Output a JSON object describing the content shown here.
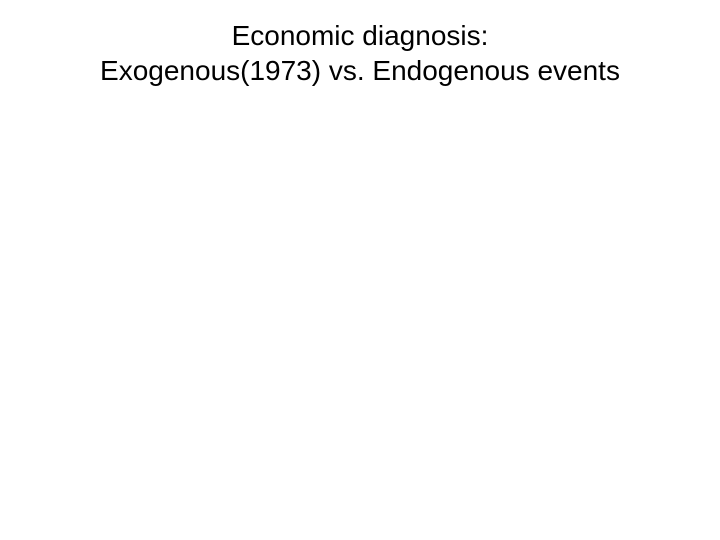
{
  "slide": {
    "title_line1": "Economic diagnosis:",
    "title_line2": "Exogenous(1973) vs. Endogenous events",
    "title_fontsize": 28,
    "title_color": "#000000",
    "background_color": "#ffffff",
    "font_family": "Arial"
  }
}
